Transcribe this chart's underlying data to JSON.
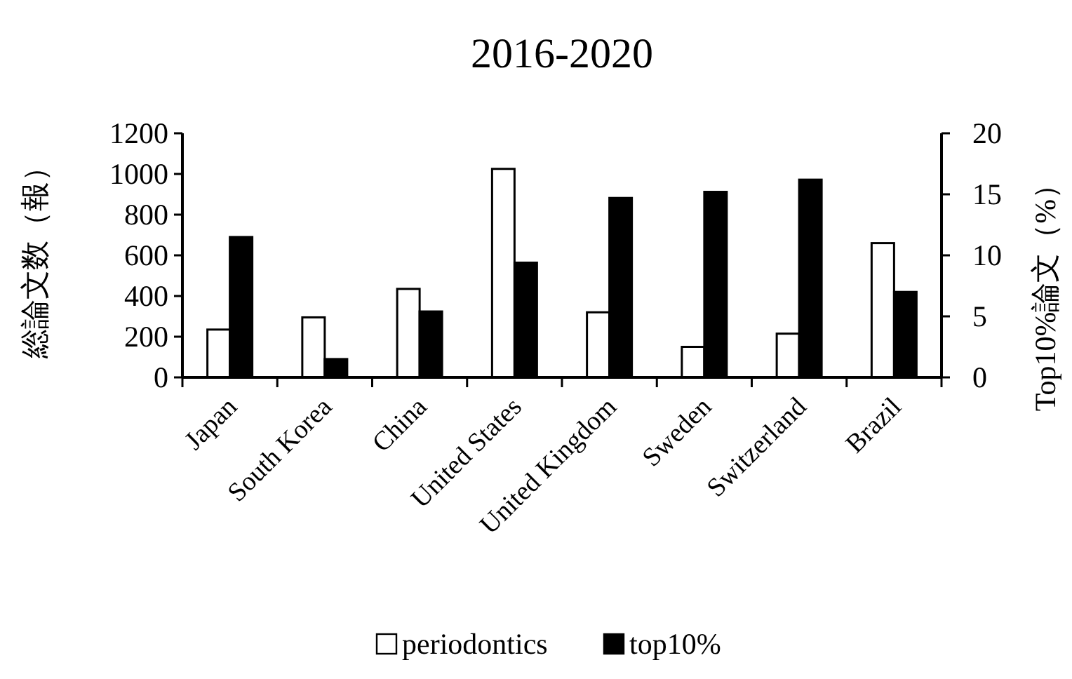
{
  "chart_data": {
    "type": "bar",
    "title": "2016-2020",
    "categories": [
      "Japan",
      "South Korea",
      "China",
      "United States",
      "United Kingdom",
      "Sweden",
      "Switzerland",
      "Brazil"
    ],
    "series": [
      {
        "name": "periodontics",
        "color": "#ffffff",
        "values": [
          235,
          295,
          435,
          1025,
          320,
          150,
          215,
          660
        ]
      },
      {
        "name": "top10%",
        "color": "#000000",
        "axis": "y2",
        "values": [
          11.5,
          1.5,
          5.4,
          9.4,
          14.7,
          15.2,
          16.2,
          7.0
        ]
      }
    ],
    "ylabel": "総論文数（報）",
    "y2label": "Top10%論文（%）",
    "ylim": [
      0,
      1200
    ],
    "yticks": [
      0,
      200,
      400,
      600,
      800,
      1000,
      1200
    ],
    "y2lim": [
      0,
      20
    ],
    "y2ticks": [
      0,
      5,
      10,
      15,
      20
    ],
    "grid": false,
    "legend": "bottom"
  }
}
